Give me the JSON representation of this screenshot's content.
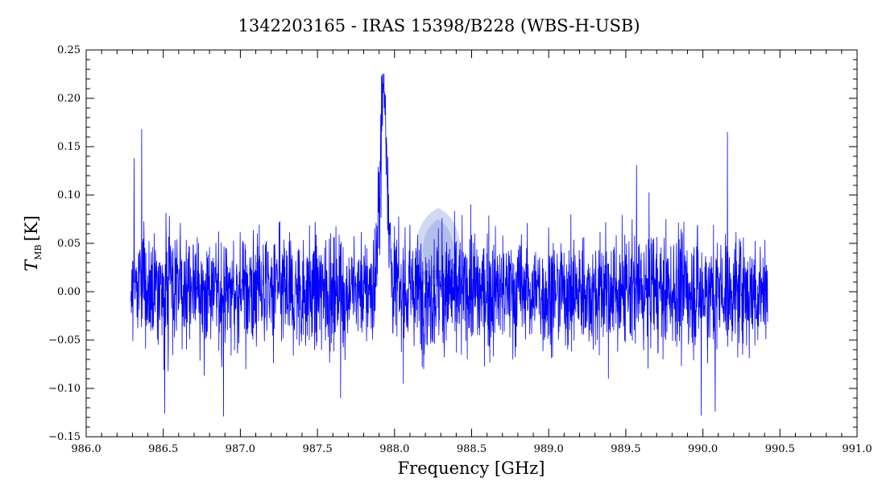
{
  "chart_data": {
    "type": "line",
    "title": "1342203165 - IRAS 15398/B228 (WBS-H-USB)",
    "xlabel": "Frequency [GHz]",
    "ylabel": {
      "symbol": "T",
      "subscript": "MB",
      "unit": "[K]"
    },
    "xlim": [
      986.0,
      991.0
    ],
    "ylim": [
      -0.15,
      0.25
    ],
    "x_ticks": [
      "986.0",
      "986.5",
      "987.0",
      "987.5",
      "988.0",
      "988.5",
      "989.0",
      "989.5",
      "990.0",
      "990.5",
      "991.0"
    ],
    "y_ticks": [
      "−0.15",
      "−0.10",
      "−0.05",
      "0.00",
      "0.05",
      "0.10",
      "0.15",
      "0.20",
      "0.25"
    ],
    "grid": false,
    "series_color": "#0000ff",
    "series": [
      {
        "x_range": [
          986.29,
          990.42
        ],
        "baseline": 0.0,
        "noise_rms": 0.03,
        "features": [
          {
            "kind": "emission-line",
            "center": 987.93,
            "peak": 0.225,
            "width": 0.05
          },
          {
            "kind": "spike",
            "x": 986.31,
            "y": 0.138
          },
          {
            "kind": "spike",
            "x": 986.36,
            "y": 0.168
          },
          {
            "kind": "spike",
            "x": 989.57,
            "y": 0.131
          },
          {
            "kind": "spike",
            "x": 990.16,
            "y": 0.165
          },
          {
            "kind": "spike",
            "x": 986.51,
            "y": -0.126
          },
          {
            "kind": "spike",
            "x": 986.89,
            "y": -0.129
          },
          {
            "kind": "spike",
            "x": 987.65,
            "y": -0.11
          },
          {
            "kind": "spike",
            "x": 989.99,
            "y": -0.128
          },
          {
            "kind": "spike",
            "x": 990.08,
            "y": -0.124
          }
        ]
      }
    ]
  },
  "watermark": {
    "name": "esa-herschel-watermark-icon",
    "color": "#6f86d2"
  }
}
